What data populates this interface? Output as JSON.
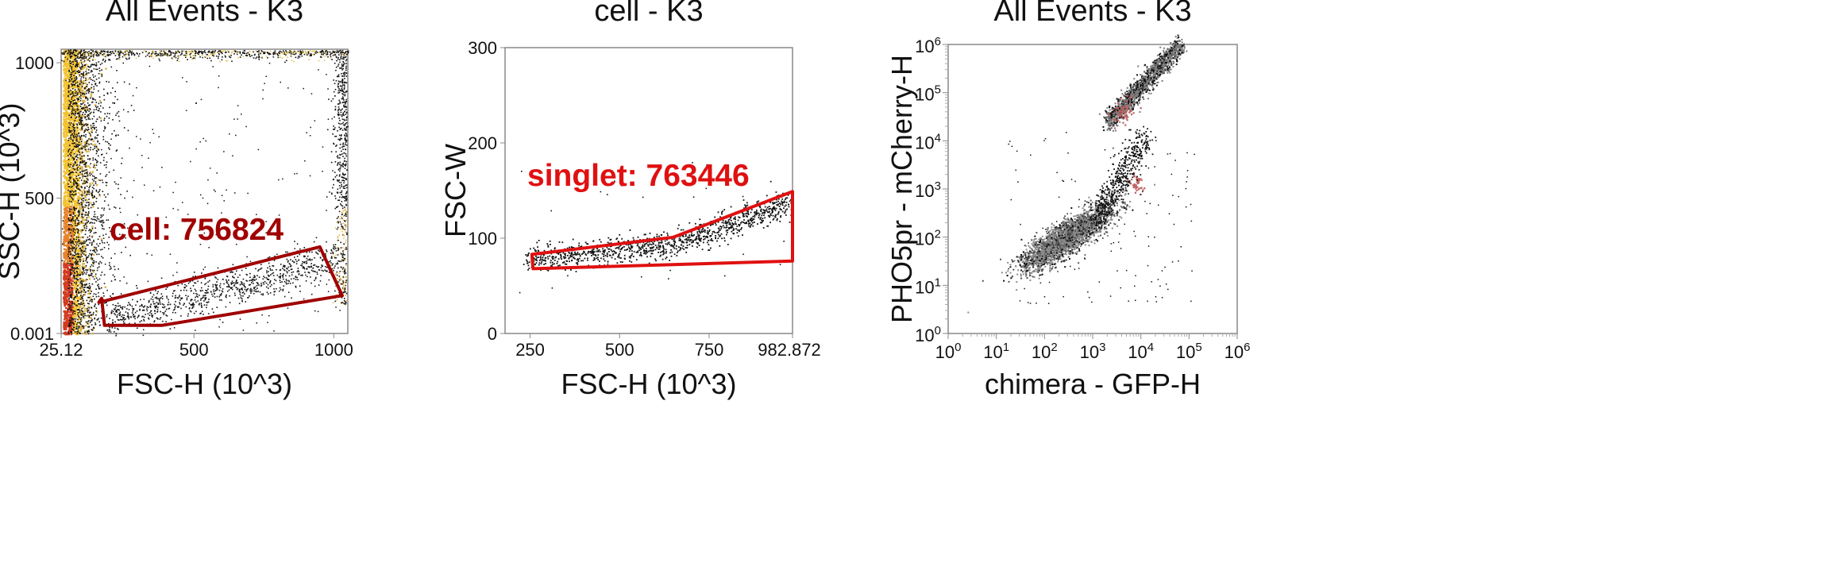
{
  "chart_data": [
    {
      "type": "scatter",
      "title": "All Events - K3",
      "xlabel": "FSC-H (10^3)",
      "ylabel": "SSC-H (10^3)",
      "xticks": [
        "25.12",
        "500",
        "1000"
      ],
      "yticks": [
        "0.001",
        "500",
        "1000"
      ],
      "xlim": [
        25.12,
        1050
      ],
      "ylim": [
        0.001,
        1050
      ],
      "style": "density pseudocolor (yellow/red at high density)",
      "gate": {
        "label": "cell: 756824",
        "name": "cell",
        "count": 756824,
        "color": "#a00000",
        "vertices": [
          [
            170,
            130
          ],
          [
            180,
            30
          ],
          [
            385,
            30
          ],
          [
            1030,
            140
          ],
          [
            950,
            320
          ],
          [
            160,
            115
          ]
        ]
      }
    },
    {
      "type": "scatter",
      "title": "cell - K3",
      "xlabel": "FSC-H (10^3)",
      "ylabel": "FSC-W",
      "xticks": [
        "250",
        "500",
        "750",
        "982.872"
      ],
      "yticks": [
        "0",
        "100",
        "200",
        "300"
      ],
      "xlim": [
        180,
        982.872
      ],
      "ylim": [
        0,
        300
      ],
      "gate": {
        "label": "singlet: 763446",
        "name": "singlet",
        "count": 763446,
        "color": "#e01010",
        "vertices": [
          [
            255,
            83
          ],
          [
            650,
            101
          ],
          [
            982.872,
            149
          ],
          [
            982.872,
            76
          ],
          [
            258,
            68
          ]
        ]
      }
    },
    {
      "type": "scatter",
      "title": "All Events - K3",
      "xlabel": "chimera - GFP-H",
      "ylabel": "PHO5pr - mCherry-H",
      "xscale": "log",
      "yscale": "log",
      "xticks": [
        "10^0",
        "10^1",
        "10^2",
        "10^3",
        "10^4",
        "10^5",
        "10^6"
      ],
      "yticks": [
        "10^0",
        "10^1",
        "10^2",
        "10^3",
        "10^4",
        "10^5",
        "10^6"
      ],
      "xlim": [
        1,
        1000000
      ],
      "ylim": [
        1,
        1000000
      ]
    }
  ]
}
